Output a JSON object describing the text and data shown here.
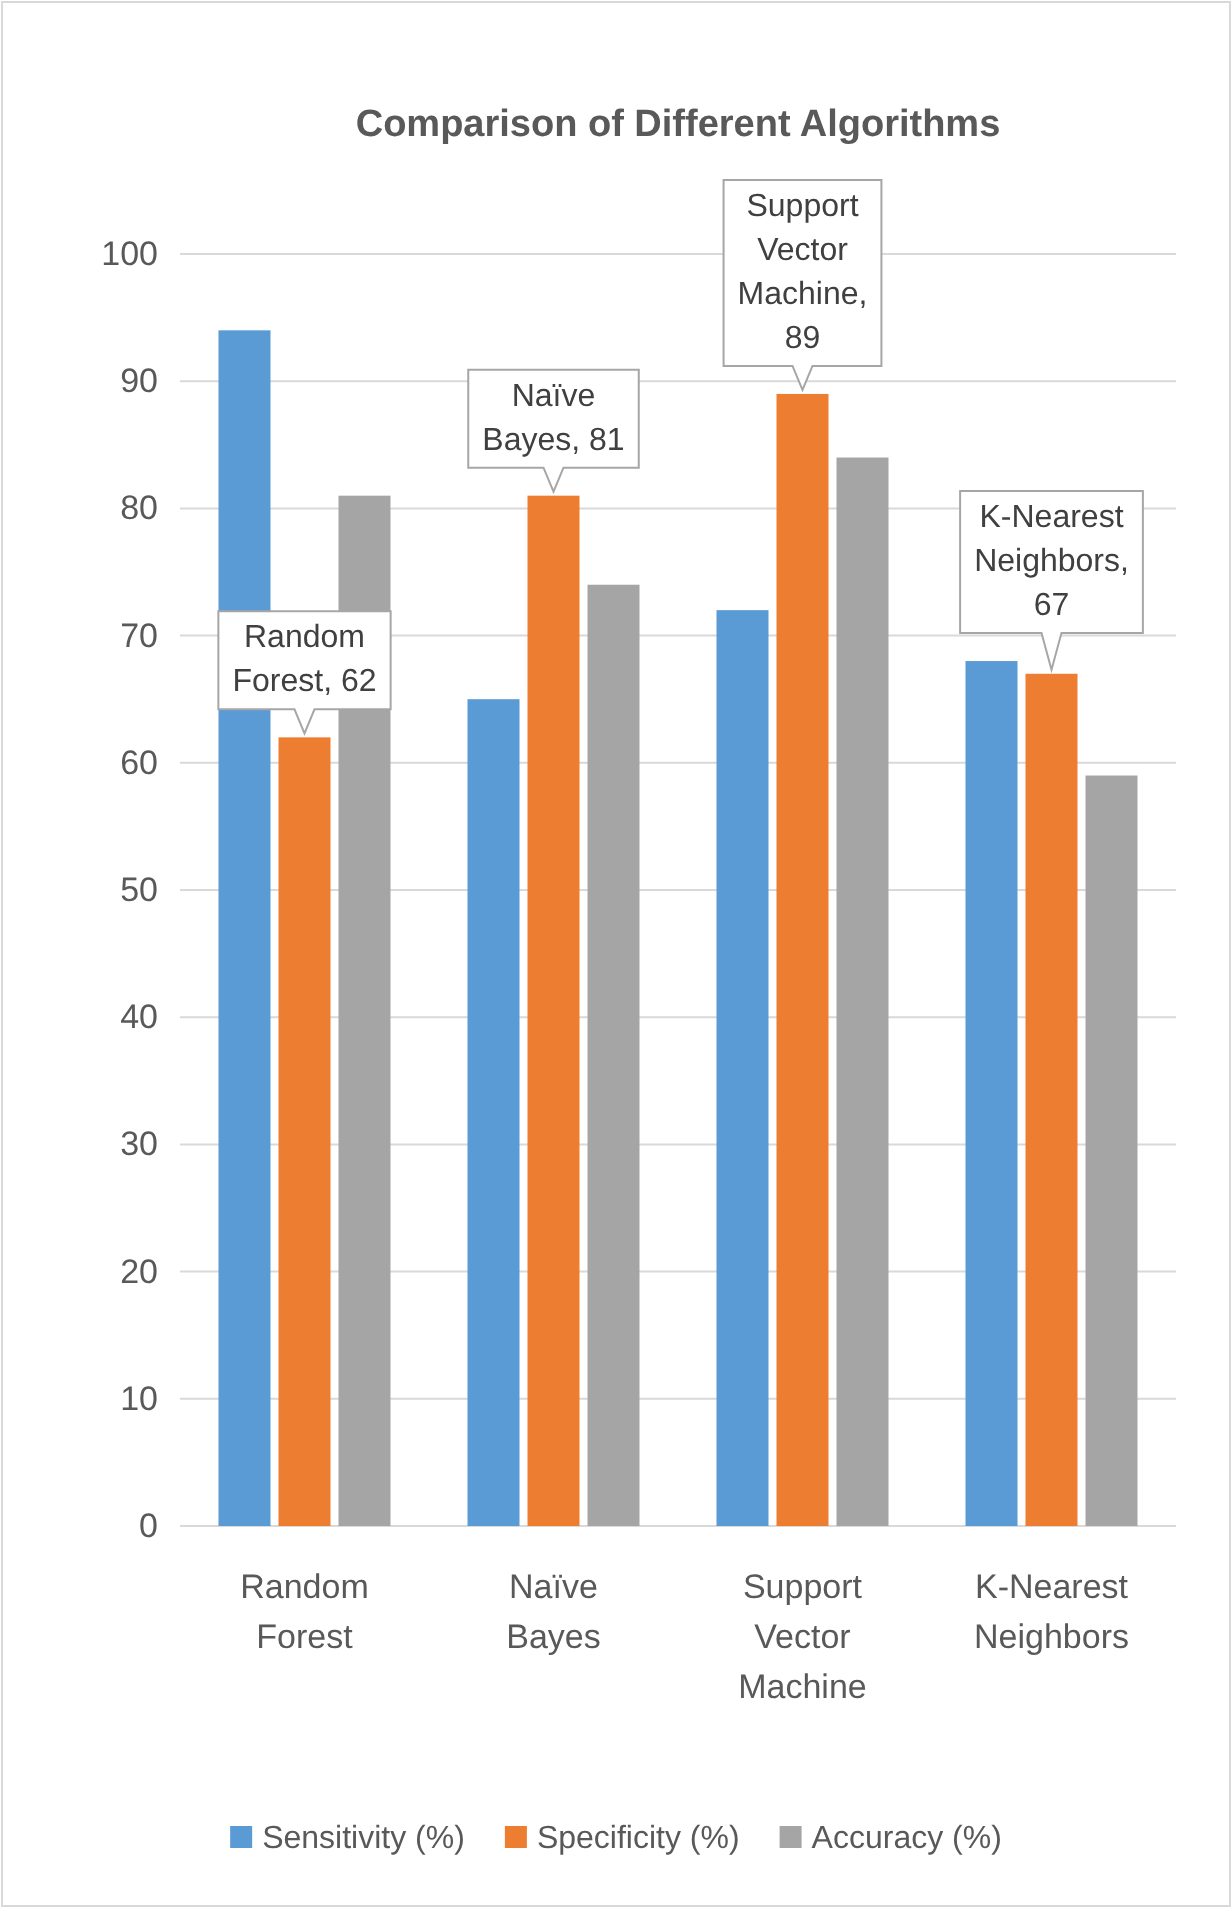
{
  "chart_data": {
    "type": "bar",
    "title": "Comparison of Different Algorithms",
    "categories": [
      "Random Forest",
      "Naïve Bayes",
      "Support Vector Machine",
      "K-Nearest Neighbors"
    ],
    "series": [
      {
        "name": "Sensitivity (%)",
        "color": "#5b9bd5",
        "values": [
          94,
          65,
          72,
          68
        ]
      },
      {
        "name": "Specificity (%)",
        "color": "#ed7d31",
        "values": [
          62,
          81,
          89,
          67
        ],
        "value_labels": [
          "Random Forest, 62",
          "Naïve Bayes, 81",
          "Support Vector Machine, 89",
          "K-Nearest Neighbors, 67"
        ]
      },
      {
        "name": "Accuracy (%)",
        "color": "#a5a5a5",
        "values": [
          81,
          74,
          84,
          59
        ]
      }
    ],
    "ylim": [
      0,
      100
    ],
    "yticks": [
      0,
      10,
      20,
      30,
      40,
      50,
      60,
      70,
      80,
      90,
      100
    ],
    "grid": "y",
    "legend": "bottom"
  }
}
